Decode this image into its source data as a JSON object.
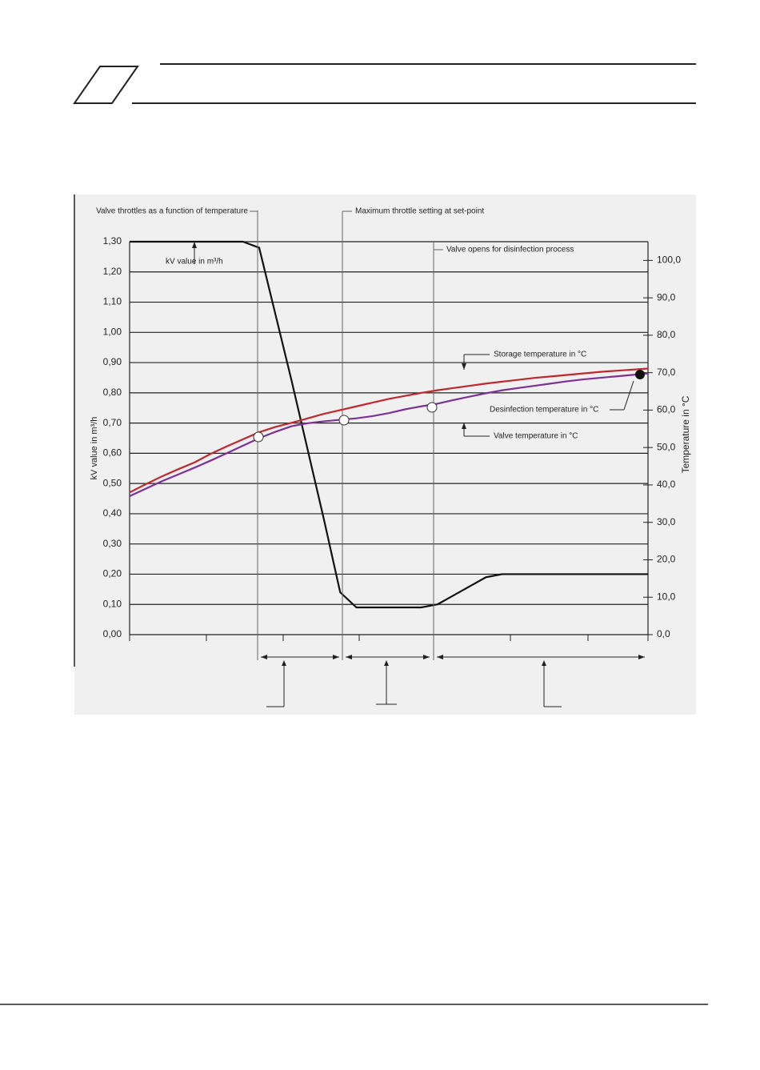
{
  "chart_data": {
    "type": "line",
    "y_label": "kV value in m³/h",
    "y2_label": "Temperature  in °C",
    "annotations": [
      "Valve throttles as a function of temperature",
      "Maximum throttle setting at set-point",
      "Valve opens for disinfection process",
      "Desinfection temperature in °C"
    ],
    "categories": [
      null,
      null,
      null,
      null,
      null,
      null,
      null,
      null,
      null,
      null,
      null,
      null,
      null,
      null,
      null,
      null,
      null,
      null,
      null,
      null,
      null,
      null,
      null,
      null,
      null,
      null,
      null,
      null,
      null,
      null,
      null,
      null,
      null
    ],
    "series": [
      {
        "name": "kV value in m³/h",
        "color": "#111111",
        "axis": "y",
        "values": [
          1.3,
          1.3,
          1.3,
          1.3,
          1.3,
          1.3,
          1.3,
          1.3,
          1.28,
          1.06,
          0.84,
          0.61,
          0.38,
          0.14,
          0.09,
          0.09,
          0.09,
          0.09,
          0.09,
          0.1,
          0.13,
          0.16,
          0.19,
          0.2,
          0.2,
          0.2,
          0.2,
          0.2,
          0.2,
          0.2,
          0.2,
          0.2,
          0.2
        ]
      },
      {
        "name": "Storage temperature in °C",
        "color": "#c0282d",
        "axis": "y2",
        "values": [
          38.0,
          40.2,
          42.3,
          44.2,
          46.0,
          48.3,
          50.3,
          52.2,
          54.1,
          55.5,
          56.6,
          57.8,
          59.0,
          60.0,
          61.0,
          62.0,
          63.0,
          63.8,
          64.6,
          65.3,
          65.9,
          66.5,
          67.1,
          67.6,
          68.1,
          68.6,
          69.0,
          69.4,
          69.8,
          70.2,
          70.5,
          70.8,
          71.1
        ]
      },
      {
        "name": "Valve temperature in °C",
        "color": "#7b3294",
        "axis": "y2",
        "values": [
          37.0,
          39.0,
          41.0,
          42.8,
          44.6,
          46.5,
          48.5,
          50.5,
          52.5,
          54.2,
          55.7,
          56.5,
          57.0,
          57.4,
          57.8,
          58.4,
          59.2,
          60.2,
          61.0,
          61.7,
          62.7,
          63.6,
          64.5,
          65.3,
          65.9,
          66.5,
          67.1,
          67.7,
          68.2,
          68.6,
          69.0,
          69.4,
          69.8
        ]
      }
    ],
    "ylim": [
      0,
      1.3
    ],
    "yticks": [
      {
        "value": 0,
        "label": "0,00"
      },
      {
        "value": 0.1,
        "label": "0,10"
      },
      {
        "value": 0.2,
        "label": "0,20"
      },
      {
        "value": 0.3,
        "label": "0,30"
      },
      {
        "value": 0.4,
        "label": "0,40"
      },
      {
        "value": 0.5,
        "label": "0,50"
      },
      {
        "value": 0.6,
        "label": "0,60"
      },
      {
        "value": 0.7,
        "label": "0,70"
      },
      {
        "value": 0.8,
        "label": "0,80"
      },
      {
        "value": 0.9,
        "label": "0,90"
      },
      {
        "value": 1.0,
        "label": "1,00"
      },
      {
        "value": 1.1,
        "label": "1,10"
      },
      {
        "value": 1.2,
        "label": "1,20"
      },
      {
        "value": 1.3,
        "label": "1,30"
      }
    ],
    "y2lim": [
      0,
      105
    ],
    "y2ticks": [
      {
        "value": 0,
        "label": "0,0"
      },
      {
        "value": 10,
        "label": "10,0"
      },
      {
        "value": 20,
        "label": "20,0"
      },
      {
        "value": 30,
        "label": "30,0"
      },
      {
        "value": 40,
        "label": "40,0"
      },
      {
        "value": 50,
        "label": "50,0"
      },
      {
        "value": 60,
        "label": "60,0"
      },
      {
        "value": 70,
        "label": "70,0"
      },
      {
        "value": 80,
        "label": "80,0"
      },
      {
        "value": 90,
        "label": "90,0"
      },
      {
        "value": 100,
        "label": "100,0"
      }
    ],
    "grid": true
  }
}
